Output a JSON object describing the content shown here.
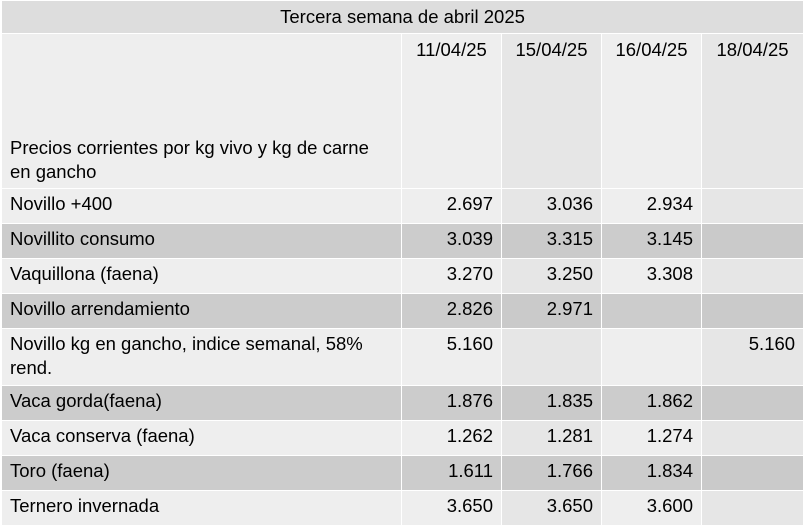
{
  "table": {
    "title": "Tercera semana de abril 2025",
    "header_label": "Precios corrientes  por kg vivo y kg de carne en gancho",
    "dates": [
      "11/04/25",
      "15/04/25",
      "16/04/25",
      "18/04/25"
    ],
    "rows": [
      {
        "label": "Novillo +400",
        "values": [
          "2.697",
          "3.036",
          "2.934",
          ""
        ]
      },
      {
        "label": "Novillito consumo",
        "values": [
          "3.039",
          "3.315",
          "3.145",
          ""
        ]
      },
      {
        "label": "Vaquillona (faena)",
        "values": [
          "3.270",
          "3.250",
          "3.308",
          ""
        ]
      },
      {
        "label": "Novillo arrendamiento",
        "values": [
          "2.826",
          "2.971",
          "",
          ""
        ]
      },
      {
        "label": "Novillo kg en gancho, indice semanal, 58% rend.",
        "values": [
          "5.160",
          "",
          "",
          "5.160"
        ]
      },
      {
        "label": "Vaca gorda(faena)",
        "values": [
          "1.876",
          "1.835",
          "1.862",
          ""
        ]
      },
      {
        "label": "Vaca conserva (faena)",
        "values": [
          "1.262",
          "1.281",
          "1.274",
          ""
        ]
      },
      {
        "label": "Toro (faena)",
        "values": [
          "1.611",
          "1.766",
          "1.834",
          ""
        ]
      },
      {
        "label": "Ternero invernada",
        "values": [
          "3.650",
          "3.650",
          "3.600",
          ""
        ]
      }
    ]
  },
  "colors": {
    "title_bg": "#dddddd",
    "row_light": "#eeeeee",
    "row_dark": "#cccccc",
    "border": "#ffffff"
  }
}
